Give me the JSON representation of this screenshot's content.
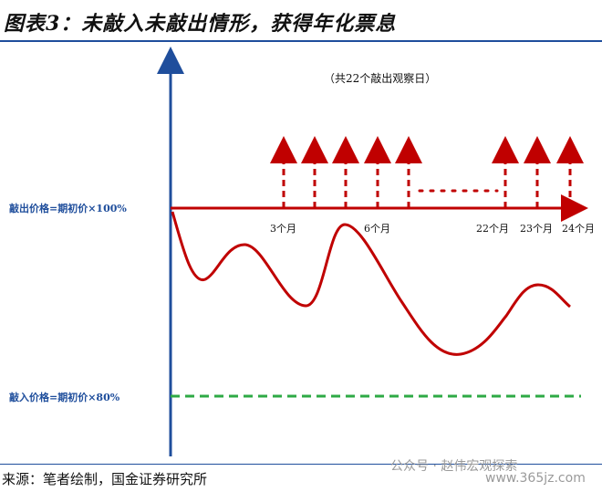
{
  "title": "图表3：未敲入未敲出情形，获得年化票息",
  "source": "来源：笔者绘制，国金证券研究所",
  "watermark": "公众号 · 赵伟宏观探索",
  "watermark_url": "www.365jz.com",
  "diagram": {
    "note": "（共22个敲出观察日）",
    "knock_out_label": "敲出价格=期初价×100%",
    "knock_in_label": "敲入价格=期初价×80%",
    "tick_labels": [
      "3个月",
      "6个月",
      "22个月",
      "23个月",
      "24个月"
    ]
  },
  "colors": {
    "axis": "#1f4e9c",
    "price_path": "#c00000",
    "knock_in_line": "#2eaa45"
  }
}
